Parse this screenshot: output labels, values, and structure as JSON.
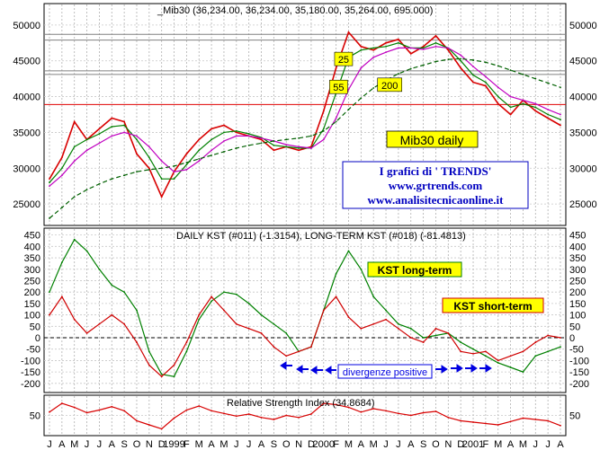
{
  "chart_data": [
    {
      "type": "line",
      "title": "_Mib30 (36,234.00, 36,234.00, 35,180.00, 35,264.00, 695.000)",
      "ylim": [
        22000,
        53000
      ],
      "yticks": [
        "50000",
        "45000",
        "40000",
        "35000",
        "30000",
        "25000"
      ],
      "x_months": [
        "J",
        "A",
        "M",
        "J",
        "J",
        "A",
        "S",
        "O",
        "N",
        "D",
        "1999",
        "F",
        "M",
        "A",
        "M",
        "J",
        "J",
        "A",
        "S",
        "O",
        "N",
        "D",
        "2000",
        "F",
        "M",
        "A",
        "M",
        "J",
        "J",
        "A",
        "S",
        "O",
        "N",
        "D",
        "2001",
        "F",
        "M",
        "A",
        "M",
        "J",
        "J",
        "A"
      ],
      "series": [
        {
          "name": "price",
          "color": "#d80000",
          "values": [
            28500,
            31500,
            36500,
            34000,
            35500,
            37000,
            36500,
            32000,
            30000,
            26000,
            29500,
            32000,
            34000,
            35500,
            36000,
            35000,
            34500,
            34000,
            32500,
            33000,
            32500,
            33000,
            38000,
            44000,
            49000,
            47000,
            46500,
            47500,
            48000,
            46000,
            47000,
            48500,
            46500,
            44000,
            42000,
            41500,
            39000,
            37500,
            39500,
            38000,
            37000,
            36000
          ]
        },
        {
          "name": "ma25",
          "color": "#008000",
          "values": [
            28000,
            30000,
            33000,
            34000,
            34800,
            35800,
            36000,
            34000,
            31500,
            28500,
            28500,
            30500,
            32500,
            34000,
            35000,
            35200,
            34800,
            34300,
            33200,
            33000,
            32800,
            32800,
            35500,
            40500,
            45500,
            46500,
            46800,
            47000,
            47500,
            46800,
            46800,
            47500,
            46800,
            45000,
            43000,
            42000,
            40000,
            38500,
            39000,
            38500,
            37500,
            36800
          ]
        },
        {
          "name": "ma55",
          "color": "#c000c0",
          "values": [
            27500,
            29000,
            31000,
            32500,
            33500,
            34500,
            35000,
            34500,
            33000,
            31000,
            29500,
            29800,
            31000,
            32500,
            33800,
            34500,
            34500,
            34200,
            33800,
            33300,
            33000,
            32800,
            34000,
            37000,
            41000,
            44000,
            45500,
            46200,
            46800,
            46800,
            46600,
            47000,
            46800,
            45800,
            44200,
            42800,
            41300,
            40000,
            39500,
            39000,
            38200,
            37500
          ]
        },
        {
          "name": "ma200",
          "color": "#006000",
          "dashed": true,
          "values": [
            23000,
            24500,
            26000,
            27000,
            27800,
            28500,
            29000,
            29500,
            29800,
            30000,
            30300,
            30800,
            31300,
            31800,
            32300,
            32800,
            33200,
            33500,
            33800,
            34000,
            34200,
            34500,
            35200,
            36500,
            38200,
            39800,
            41200,
            42300,
            43200,
            43900,
            44400,
            44900,
            45200,
            45300,
            45100,
            44800,
            44300,
            43700,
            43100,
            42500,
            41900,
            41300
          ]
        }
      ],
      "hlines": [
        {
          "y": 48700,
          "color": "#808080"
        },
        {
          "y": 47900,
          "color": "#808080"
        },
        {
          "y": 43600,
          "color": "#808080"
        },
        {
          "y": 43100,
          "color": "#808080"
        },
        {
          "y": 38900,
          "color": "#e00000"
        }
      ],
      "ma_labels": [
        {
          "text": "25",
          "x_idx": 23.6,
          "y": 45200,
          "bg": "#ffff00"
        },
        {
          "text": "55",
          "x_idx": 23.2,
          "y": 41300,
          "bg": "#ffff00"
        },
        {
          "text": "200",
          "x_idx": 27.3,
          "y": 41600,
          "bg": "#ffff00"
        }
      ],
      "labels": {
        "name_box": "Mib30 daily",
        "info_title": "I grafici di ' TRENDS'",
        "info_url1": "www.grtrends.com",
        "info_url2": "www.analisitecnicaonline.it"
      }
    },
    {
      "type": "line",
      "title": "DAILY KST (#011) (-1.3154), LONG-TERM KST (#018) (-81.4813)",
      "ylim": [
        -240,
        480
      ],
      "yticks": [
        "450",
        "400",
        "350",
        "300",
        "250",
        "200",
        "150",
        "100",
        "50",
        "0",
        "-50",
        "-100",
        "-150",
        "-200"
      ],
      "series": [
        {
          "name": "KST long-term",
          "color": "#008000",
          "values": [
            200,
            330,
            430,
            380,
            300,
            230,
            200,
            120,
            -60,
            -160,
            -170,
            -60,
            80,
            160,
            200,
            190,
            150,
            100,
            60,
            20,
            -60,
            -40,
            120,
            280,
            380,
            300,
            180,
            120,
            60,
            40,
            0,
            10,
            20,
            -20,
            -50,
            -80,
            -110,
            -130,
            -150,
            -80,
            -60,
            -40
          ]
        },
        {
          "name": "KST short-term",
          "color": "#d00000",
          "values": [
            100,
            180,
            80,
            20,
            60,
            100,
            60,
            -20,
            -120,
            -170,
            -120,
            -20,
            100,
            180,
            120,
            60,
            40,
            20,
            -40,
            -80,
            -60,
            -40,
            120,
            180,
            90,
            40,
            60,
            80,
            40,
            0,
            -20,
            40,
            20,
            -60,
            -70,
            -60,
            -100,
            -80,
            -60,
            -20,
            10,
            0
          ]
        }
      ],
      "labels": {
        "long_term": "KST long-term",
        "short_term": "KST short-term",
        "divergence": "divergenze positive"
      }
    },
    {
      "type": "line",
      "title": "Relative Strength Index (34.8684)",
      "ylim": [
        20,
        80
      ],
      "yticks": [
        "50"
      ],
      "series": [
        {
          "name": "RSI",
          "color": "#d80000",
          "values": [
            55,
            68,
            62,
            54,
            58,
            63,
            57,
            42,
            36,
            30,
            46,
            58,
            64,
            57,
            53,
            49,
            52,
            47,
            44,
            50,
            47,
            52,
            68,
            66,
            62,
            55,
            60,
            57,
            53,
            50,
            54,
            56,
            47,
            42,
            40,
            38,
            36,
            41,
            46,
            44,
            42,
            35
          ]
        }
      ]
    }
  ]
}
